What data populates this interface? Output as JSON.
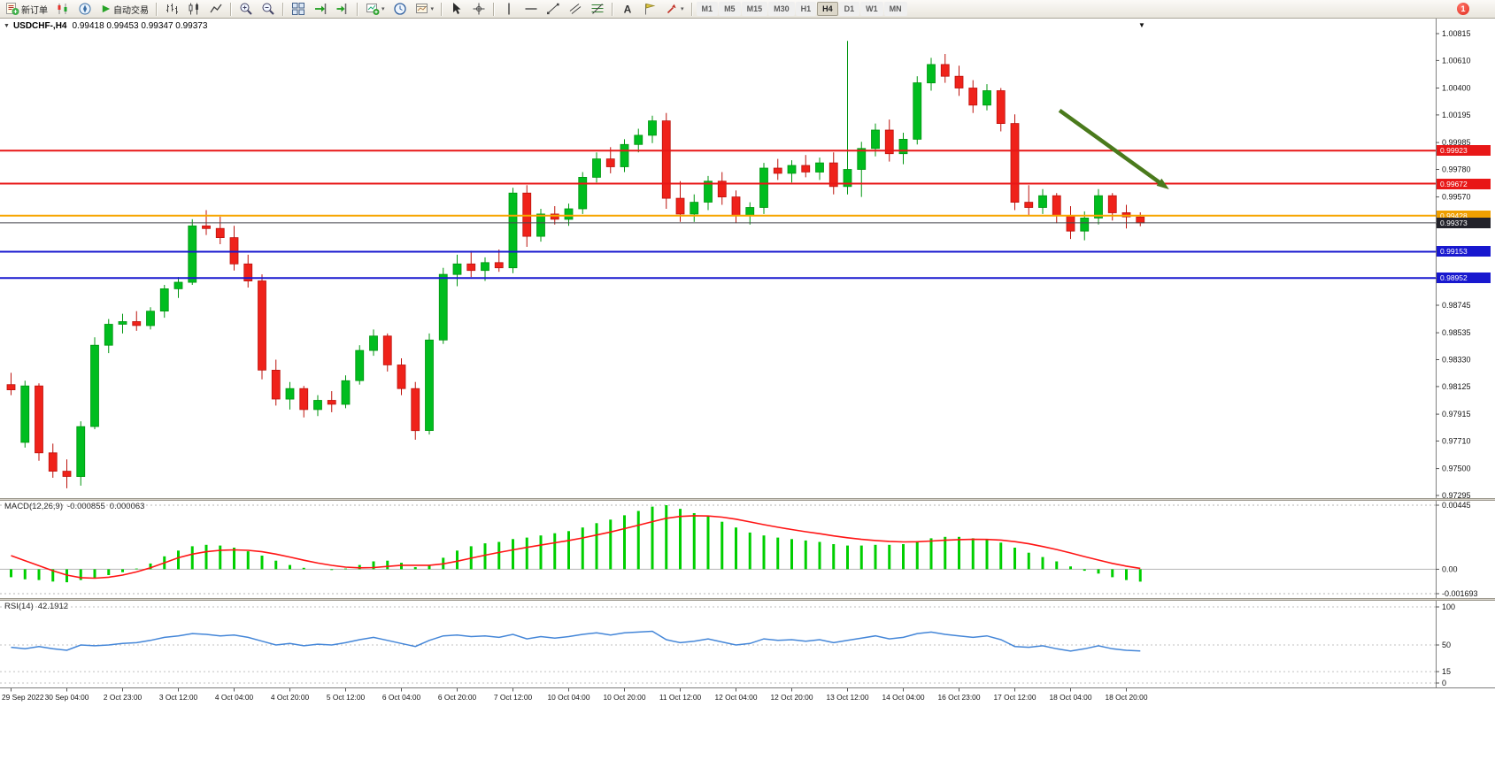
{
  "icons": {
    "dropdown_caret": "▾",
    "collapse_arrow": "▼",
    "shift_marker": "▼"
  },
  "toolbar": {
    "new_order": "新订单",
    "auto_trading": "自动交易",
    "timeframes": [
      "M1",
      "M5",
      "M15",
      "M30",
      "H1",
      "H4",
      "D1",
      "W1",
      "MN"
    ],
    "active_timeframe": "H4",
    "notification_count": "1"
  },
  "chart": {
    "title_symbol": "USDCHF-,H4",
    "title_values": "0.99418 0.99453 0.99347 0.99373"
  },
  "chart_data": {
    "type": "candlestick",
    "symbol": "USDCHF-",
    "timeframe": "H4",
    "colors": {
      "up": "#00bd1f",
      "up_border": "#00950f",
      "down": "#ef221a",
      "down_border": "#bc120c",
      "macd_hist": "#00cf00",
      "macd_signal": "#ff1414",
      "rsi_line": "#4486d8",
      "arrow": "#4a7a1c"
    },
    "y_axis_ticks": [
      "1.00815",
      "1.00610",
      "1.00400",
      "1.00195",
      "0.99985",
      "0.99780",
      "0.99570",
      "0.99365",
      "0.99155",
      "0.98950",
      "0.98745",
      "0.98535",
      "0.98330",
      "0.98125",
      "0.97915",
      "0.97710",
      "0.97500",
      "0.97295"
    ],
    "hlines": [
      {
        "label": "0.99923",
        "price": 0.99923,
        "color": "#e81717",
        "badge": "#e81717",
        "width": 2
      },
      {
        "label": "0.99672",
        "price": 0.99672,
        "color": "#e81717",
        "badge": "#e81717",
        "width": 2
      },
      {
        "label": "0.99428",
        "price": 0.99428,
        "color": "#f7a500",
        "badge": "#ef9f00",
        "width": 2
      },
      {
        "label": "0.99373",
        "price": 0.99373,
        "color": "#46464e",
        "badge": "#22222a",
        "width": 1
      },
      {
        "label": "0.99153",
        "price": 0.99153,
        "color": "#1818cf",
        "badge": "#1818cf",
        "width": 2
      },
      {
        "label": "0.98952",
        "price": 0.98952,
        "color": "#1818cf",
        "badge": "#1818cf",
        "width": 2
      }
    ],
    "arrow": {
      "from_bar": 75.5,
      "from_price": 1.0023,
      "to_bar": 83.2,
      "to_price": 0.9964,
      "color": "#4a7a1c"
    },
    "time_labels": [
      "29 Sep 2022",
      "30 Sep 04:00",
      "2 Oct 23:00",
      "3 Oct 12:00",
      "4 Oct 04:00",
      "4 Oct 20:00",
      "5 Oct 12:00",
      "6 Oct 04:00",
      "6 Oct 20:00",
      "7 Oct 12:00",
      "10 Oct 04:00",
      "10 Oct 20:00",
      "11 Oct 12:00",
      "12 Oct 04:00",
      "12 Oct 20:00",
      "13 Oct 12:00",
      "14 Oct 04:00",
      "16 Oct 23:00",
      "17 Oct 12:00",
      "18 Oct 04:00",
      "18 Oct 20:00"
    ],
    "candles": [
      [
        0.9814,
        0.9823,
        0.9806,
        0.981
      ],
      [
        0.977,
        0.9817,
        0.9766,
        0.9813
      ],
      [
        0.9813,
        0.9815,
        0.9756,
        0.9762
      ],
      [
        0.9762,
        0.9769,
        0.9743,
        0.9748
      ],
      [
        0.9748,
        0.9757,
        0.9735,
        0.9744
      ],
      [
        0.9744,
        0.9786,
        0.9737,
        0.9782
      ],
      [
        0.9782,
        0.985,
        0.978,
        0.9844
      ],
      [
        0.9844,
        0.9864,
        0.9838,
        0.986
      ],
      [
        0.986,
        0.9868,
        0.9853,
        0.9862
      ],
      [
        0.9862,
        0.987,
        0.9855,
        0.9859
      ],
      [
        0.9859,
        0.9873,
        0.9856,
        0.987
      ],
      [
        0.987,
        0.989,
        0.9865,
        0.9887
      ],
      [
        0.9887,
        0.9896,
        0.988,
        0.9892
      ],
      [
        0.9892,
        0.994,
        0.989,
        0.9935
      ],
      [
        0.9935,
        0.9947,
        0.9928,
        0.9933
      ],
      [
        0.9933,
        0.9942,
        0.9921,
        0.9926
      ],
      [
        0.9926,
        0.9935,
        0.9901,
        0.9906
      ],
      [
        0.9906,
        0.9913,
        0.9888,
        0.9893
      ],
      [
        0.9893,
        0.9898,
        0.9818,
        0.9825
      ],
      [
        0.9825,
        0.9833,
        0.9798,
        0.9803
      ],
      [
        0.9803,
        0.9816,
        0.9795,
        0.9811
      ],
      [
        0.9811,
        0.9813,
        0.9789,
        0.9795
      ],
      [
        0.9795,
        0.9806,
        0.979,
        0.9802
      ],
      [
        0.9802,
        0.9809,
        0.9793,
        0.9799
      ],
      [
        0.9799,
        0.9821,
        0.9796,
        0.9817
      ],
      [
        0.9817,
        0.9844,
        0.9814,
        0.984
      ],
      [
        0.984,
        0.9856,
        0.9836,
        0.9851
      ],
      [
        0.9851,
        0.9853,
        0.9824,
        0.9829
      ],
      [
        0.9829,
        0.9834,
        0.9806,
        0.9811
      ],
      [
        0.9811,
        0.9816,
        0.9772,
        0.9779
      ],
      [
        0.9779,
        0.9853,
        0.9776,
        0.9848
      ],
      [
        0.9848,
        0.9903,
        0.9845,
        0.9898
      ],
      [
        0.9898,
        0.9913,
        0.9889,
        0.9906
      ],
      [
        0.9906,
        0.9916,
        0.9896,
        0.9901
      ],
      [
        0.9901,
        0.9911,
        0.9893,
        0.9907
      ],
      [
        0.9907,
        0.9917,
        0.99,
        0.9903
      ],
      [
        0.9903,
        0.9964,
        0.9899,
        0.996
      ],
      [
        0.996,
        0.9966,
        0.9919,
        0.9927
      ],
      [
        0.9927,
        0.9948,
        0.9923,
        0.9944
      ],
      [
        0.9944,
        0.995,
        0.9936,
        0.994
      ],
      [
        0.994,
        0.9952,
        0.9935,
        0.9948
      ],
      [
        0.9948,
        0.9976,
        0.9944,
        0.9972
      ],
      [
        0.9972,
        0.9991,
        0.9968,
        0.9986
      ],
      [
        0.9986,
        0.9995,
        0.9975,
        0.998
      ],
      [
        0.998,
        1.0001,
        0.9976,
        0.9997
      ],
      [
        0.9997,
        1.0009,
        0.9991,
        1.0004
      ],
      [
        1.0004,
        1.0019,
        0.9998,
        1.0015
      ],
      [
        1.0015,
        1.0021,
        0.9948,
        0.9956
      ],
      [
        0.9956,
        0.9969,
        0.9938,
        0.9944
      ],
      [
        0.9944,
        0.9959,
        0.9938,
        0.9953
      ],
      [
        0.9953,
        0.9973,
        0.9947,
        0.9969
      ],
      [
        0.9969,
        0.9976,
        0.9951,
        0.9957
      ],
      [
        0.9957,
        0.9962,
        0.9937,
        0.9943
      ],
      [
        0.9943,
        0.9953,
        0.9936,
        0.9949
      ],
      [
        0.9949,
        0.9983,
        0.9944,
        0.9979
      ],
      [
        0.9979,
        0.9986,
        0.997,
        0.9975
      ],
      [
        0.9975,
        0.9985,
        0.9968,
        0.9981
      ],
      [
        0.9981,
        0.9989,
        0.9972,
        0.9976
      ],
      [
        0.9976,
        0.9987,
        0.997,
        0.9983
      ],
      [
        0.9983,
        0.9991,
        0.9959,
        0.9965
      ],
      [
        0.9965,
        1.0076,
        0.9959,
        0.9978
      ],
      [
        0.9978,
        0.9999,
        0.9957,
        0.9994
      ],
      [
        0.9994,
        1.0013,
        0.9988,
        1.0008
      ],
      [
        1.0008,
        1.0016,
        0.9984,
        0.999
      ],
      [
        0.999,
        1.0006,
        0.9982,
        1.0001
      ],
      [
        1.0001,
        1.0049,
        0.9997,
        1.0044
      ],
      [
        1.0044,
        1.0063,
        1.0038,
        1.0058
      ],
      [
        1.0058,
        1.0066,
        1.0044,
        1.0049
      ],
      [
        1.0049,
        1.0057,
        1.0034,
        1.004
      ],
      [
        1.004,
        1.0046,
        1.0021,
        1.0027
      ],
      [
        1.0027,
        1.0043,
        1.0023,
        1.0038
      ],
      [
        1.0038,
        1.004,
        1.0007,
        1.0013
      ],
      [
        1.0013,
        1.002,
        0.9947,
        0.9953
      ],
      [
        0.9953,
        0.9966,
        0.9943,
        0.9949
      ],
      [
        0.9949,
        0.9963,
        0.9944,
        0.9958
      ],
      [
        0.9958,
        0.996,
        0.9937,
        0.9943
      ],
      [
        0.9943,
        0.995,
        0.9925,
        0.9931
      ],
      [
        0.9931,
        0.9946,
        0.9924,
        0.9941
      ],
      [
        0.9941,
        0.9963,
        0.9936,
        0.9958
      ],
      [
        0.9958,
        0.996,
        0.9939,
        0.9945
      ],
      [
        0.9945,
        0.9951,
        0.9933,
        0.99418
      ],
      [
        0.99418,
        0.99453,
        0.99347,
        0.99373
      ]
    ],
    "macd": {
      "name": "MACD(12,26,9)",
      "value_main": "-0.000855",
      "value_signal": "0.000063",
      "axis": [
        [
          "0.00445",
          0.00445
        ],
        [
          "0.00",
          0.0
        ],
        [
          "-0.001693",
          -0.001693
        ]
      ],
      "histogram": [
        -0.00055,
        -0.0007,
        -0.00075,
        -0.00085,
        -0.0009,
        -0.00075,
        -0.0006,
        -0.0004,
        -0.0002,
        5e-05,
        0.0004,
        0.0009,
        0.0013,
        0.0016,
        0.0017,
        0.00165,
        0.0015,
        0.00125,
        0.00095,
        0.0006,
        0.0003,
        0.0001,
        0.0,
        -5e-05,
        5e-05,
        0.0003,
        0.00055,
        0.0006,
        0.00045,
        0.00015,
        0.0003,
        0.0008,
        0.0013,
        0.0016,
        0.0018,
        0.0019,
        0.0021,
        0.0022,
        0.00235,
        0.0025,
        0.00265,
        0.0029,
        0.0032,
        0.00345,
        0.00375,
        0.00405,
        0.00435,
        0.00445,
        0.0042,
        0.0039,
        0.00365,
        0.0033,
        0.0029,
        0.00255,
        0.00235,
        0.0022,
        0.0021,
        0.002,
        0.0019,
        0.00175,
        0.00165,
        0.00165,
        0.0017,
        0.0017,
        0.00175,
        0.00195,
        0.00215,
        0.00225,
        0.00225,
        0.00215,
        0.00205,
        0.00185,
        0.0015,
        0.00115,
        0.00085,
        0.00055,
        0.0002,
        -0.0001,
        -0.0003,
        -0.00055,
        -0.00075,
        -0.000855
      ],
      "signal": [
        0.00095,
        0.0006,
        0.00025,
        -0.0001,
        -0.0004,
        -0.00058,
        -0.00062,
        -0.00055,
        -0.0004,
        -0.00018,
        0.0001,
        0.00045,
        0.0008,
        0.00105,
        0.00122,
        0.00132,
        0.00135,
        0.00132,
        0.00122,
        0.00105,
        0.00085,
        0.00063,
        0.00043,
        0.00027,
        0.00015,
        0.0001,
        0.00012,
        0.0002,
        0.00028,
        0.00028,
        0.00028,
        0.00038,
        0.00056,
        0.00077,
        0.00098,
        0.00117,
        0.00135,
        0.00152,
        0.00168,
        0.00184,
        0.002,
        0.00218,
        0.00238,
        0.00259,
        0.00282,
        0.00306,
        0.00331,
        0.00354,
        0.00367,
        0.00372,
        0.0037,
        0.00362,
        0.00348,
        0.00329,
        0.0031,
        0.00292,
        0.00276,
        0.00261,
        0.00247,
        0.00232,
        0.00219,
        0.00208,
        0.002,
        0.00194,
        0.0019,
        0.00191,
        0.00196,
        0.00202,
        0.00206,
        0.00208,
        0.00207,
        0.00203,
        0.00192,
        0.00177,
        0.00158,
        0.00137,
        0.00113,
        0.00088,
        0.00064,
        0.00041,
        0.00022,
        6.3e-05
      ]
    },
    "rsi": {
      "name": "RSI(14)",
      "value": "42.1912",
      "axis": [
        [
          "100",
          100
        ],
        [
          "50",
          50
        ],
        [
          "15",
          15
        ],
        [
          "0",
          0
        ]
      ],
      "values": [
        47,
        45,
        48,
        45,
        43,
        50,
        49,
        50,
        52,
        53,
        56,
        60,
        62,
        65,
        64,
        62,
        63,
        60,
        55,
        50,
        52,
        49,
        51,
        50,
        53,
        57,
        60,
        56,
        52,
        48,
        56,
        62,
        63,
        61,
        62,
        60,
        64,
        58,
        61,
        59,
        61,
        64,
        66,
        63,
        66,
        67,
        68,
        57,
        53,
        55,
        58,
        54,
        50,
        52,
        58,
        56,
        57,
        55,
        57,
        53,
        56,
        59,
        62,
        58,
        60,
        65,
        67,
        64,
        62,
        60,
        62,
        57,
        48,
        47,
        49,
        45,
        42,
        45,
        49,
        45,
        43,
        42.19
      ]
    }
  }
}
